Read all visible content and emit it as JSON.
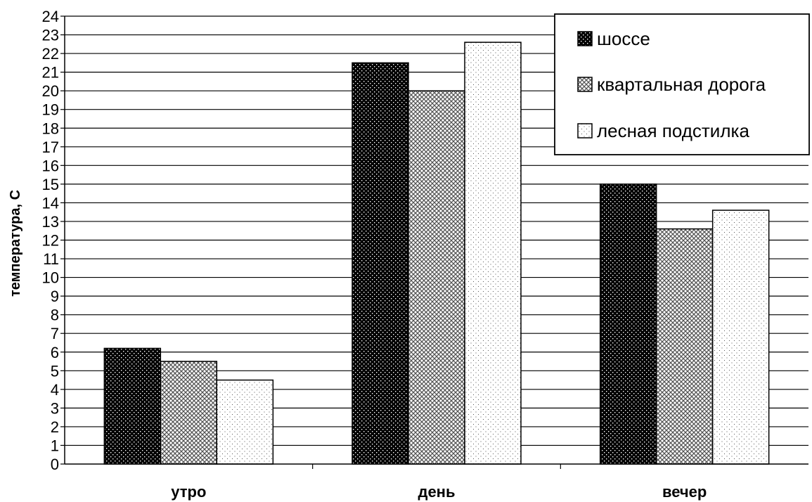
{
  "chart_data": {
    "type": "bar",
    "title": "",
    "xlabel": "",
    "ylabel": "температура, С",
    "ylim": [
      0,
      24
    ],
    "yticks": [
      0,
      1,
      2,
      3,
      4,
      5,
      6,
      7,
      8,
      9,
      10,
      11,
      12,
      13,
      14,
      15,
      16,
      17,
      18,
      19,
      20,
      21,
      22,
      23,
      24
    ],
    "grid": true,
    "legend_position": "top-right",
    "categories": [
      "утро",
      "день",
      "вечер"
    ],
    "series": [
      {
        "name": "шоссе",
        "values": [
          6.2,
          21.5,
          15.0
        ],
        "pattern": "dark-dotted",
        "color": "#000000"
      },
      {
        "name": "квартальная дорога",
        "values": [
          5.5,
          20.0,
          12.6
        ],
        "pattern": "crosshatch",
        "color": "#8a8a8a"
      },
      {
        "name": "лесная подстилка",
        "values": [
          4.5,
          22.6,
          13.6
        ],
        "pattern": "light-dotted",
        "color": "#ffffff"
      }
    ]
  }
}
